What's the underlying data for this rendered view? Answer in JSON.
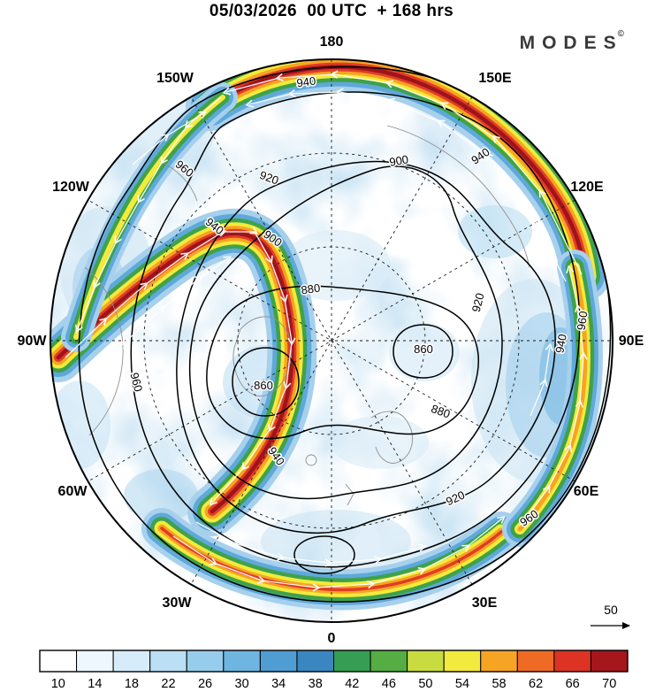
{
  "header": {
    "title": "05/03/2026  00 UTC  + 168 hrs",
    "brand": "MODES",
    "brand_mark": "©"
  },
  "map": {
    "lon_labels": [
      "180",
      "150E",
      "120E",
      "90E",
      "60E",
      "30E",
      "0",
      "30W",
      "60W",
      "90W",
      "120W",
      "150W"
    ],
    "contour_labels": {
      "860": "860",
      "880": "880",
      "900": "900",
      "920": "920",
      "940": "940",
      "960": "960"
    },
    "reference_arrow": {
      "label": "50"
    }
  },
  "colorbar": {
    "ticks": [
      "10",
      "14",
      "18",
      "22",
      "26",
      "30",
      "34",
      "38",
      "42",
      "46",
      "50",
      "54",
      "58",
      "62",
      "66",
      "70"
    ],
    "colors": [
      "#ffffff",
      "#eef7fd",
      "#d7ecfa",
      "#bbdff5",
      "#97cdec",
      "#6fb5e1",
      "#4f9dd3",
      "#3a86c1",
      "#359e54",
      "#55ad43",
      "#c8dc3f",
      "#f2ea3d",
      "#f6a423",
      "#ef6a25",
      "#dc3325",
      "#a5161d"
    ]
  }
}
